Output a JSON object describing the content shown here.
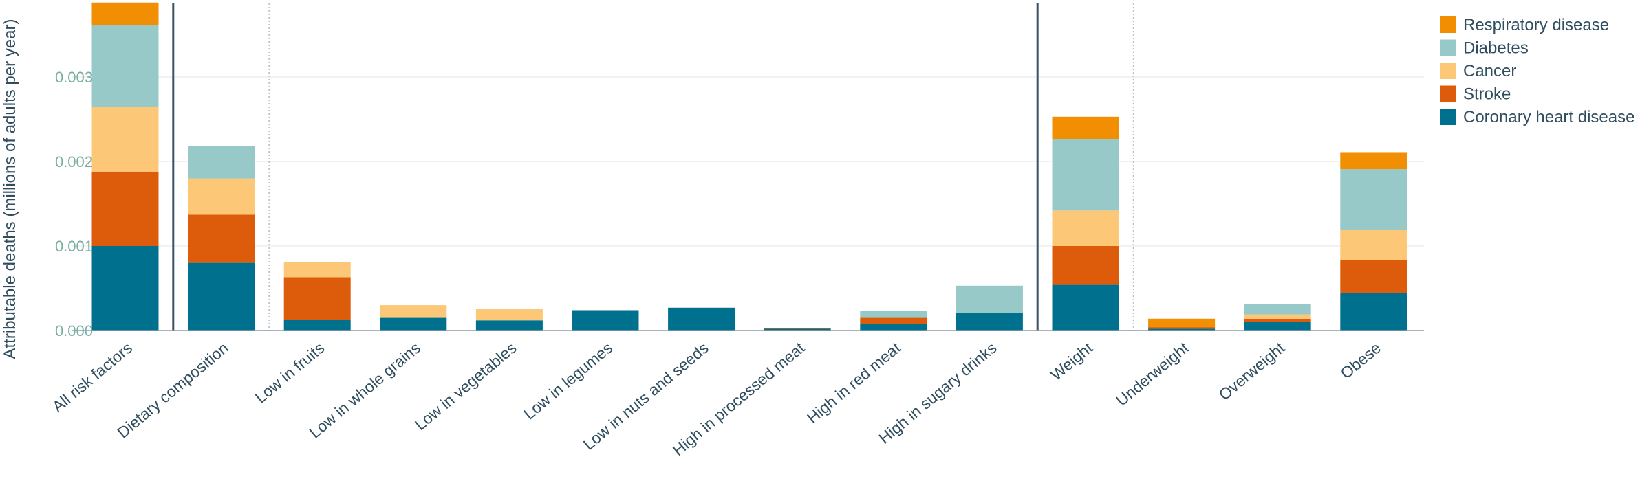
{
  "chart_data": {
    "type": "bar",
    "stacked": true,
    "ylabel": "Attributable deaths (millions of adults per year)",
    "xlabel": "",
    "ylim": [
      0,
      0.00385
    ],
    "yticks": [
      0,
      0.001,
      0.002,
      0.003
    ],
    "ytick_labels": [
      "0.000",
      "0.001",
      "0.002",
      "0.003"
    ],
    "grid": true,
    "legend": "top-right",
    "categories": [
      "All risk factors",
      "Dietary composition",
      "Low in fruits",
      "Low in whole grains",
      "Low in vegetables",
      "Low in legumes",
      "Low in nuts and seeds",
      "High in processed meat",
      "High in red meat",
      "High in sugary drinks",
      "Weight",
      "Underweight",
      "Overweight",
      "Obese"
    ],
    "series": [
      {
        "name": "Coronary heart disease",
        "color": "#00708f",
        "values": [
          0.001,
          0.0008,
          0.00013,
          0.00015,
          0.00012,
          0.00024,
          0.00027,
          2e-05,
          8e-05,
          0.00021,
          0.00054,
          2e-05,
          0.0001,
          0.00044
        ]
      },
      {
        "name": "Stroke",
        "color": "#dd5c0b",
        "values": [
          0.00088,
          0.00057,
          0.0005,
          0,
          0,
          0,
          0,
          1e-05,
          7e-05,
          0,
          0.00046,
          2e-05,
          4e-05,
          0.00039
        ]
      },
      {
        "name": "Cancer",
        "color": "#fcc878",
        "values": [
          0.00077,
          0.00043,
          0.00018,
          0.00015,
          0.00014,
          0,
          0,
          0,
          0,
          0,
          0.00042,
          0,
          5e-05,
          0.00036
        ]
      },
      {
        "name": "Diabetes",
        "color": "#97c9c8",
        "values": [
          0.00096,
          0.00038,
          0,
          0,
          0,
          0,
          0,
          0,
          8e-05,
          0.00032,
          0.00084,
          0,
          0.00012,
          0.00072
        ]
      },
      {
        "name": "Respiratory disease",
        "color": "#f18e02",
        "values": [
          0.00027,
          0,
          0,
          0,
          0,
          0,
          0,
          0,
          0,
          0,
          0.00027,
          0.0001,
          0,
          0.0002
        ]
      }
    ],
    "group_separators": [
      {
        "after_category": 0,
        "style": "solid"
      },
      {
        "after_category": 1,
        "style": "dotted"
      },
      {
        "after_category": 9,
        "style": "solid"
      },
      {
        "after_category": 10,
        "style": "dotted"
      }
    ]
  }
}
